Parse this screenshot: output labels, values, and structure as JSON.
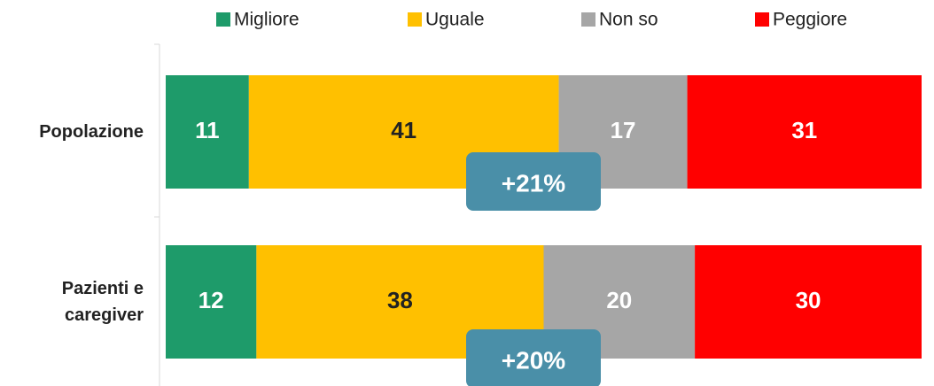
{
  "chart_data": {
    "type": "stacked-bar-horizontal",
    "categories": [
      "Popolazione",
      "Pazienti e caregiver"
    ],
    "series": [
      {
        "name": "Migliore",
        "color": "#1e9b6a",
        "values": [
          11,
          12
        ]
      },
      {
        "name": "Uguale",
        "color": "#ffc000",
        "values": [
          41,
          38
        ]
      },
      {
        "name": "Non so",
        "color": "#a6a6a6",
        "values": [
          17,
          20
        ]
      },
      {
        "name": "Peggiore",
        "color": "#ff0000",
        "values": [
          31,
          30
        ]
      }
    ],
    "xlim": [
      0,
      100
    ],
    "legend": "top",
    "annotations": [
      "+21%",
      "+20%"
    ]
  }
}
